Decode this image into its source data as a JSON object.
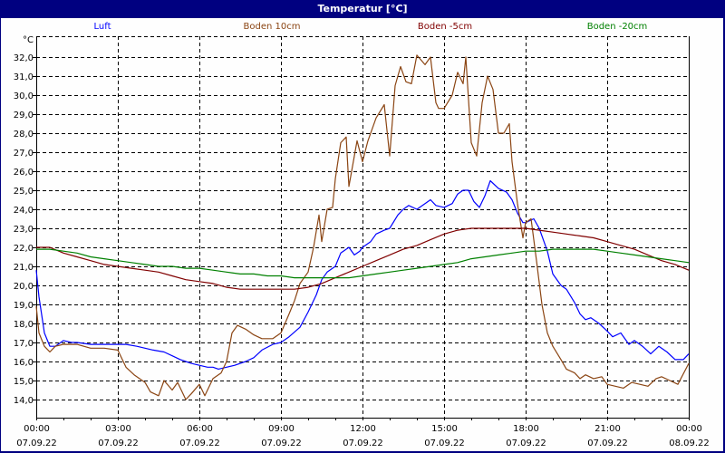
{
  "window": {
    "title": "Temperatur [°C]"
  },
  "chart_data": {
    "type": "line",
    "title": "Temperatur [°C]",
    "ylabel": "°C",
    "xlabel": "",
    "ylim": [
      13.0,
      33.0
    ],
    "yticks": [
      14.0,
      15.0,
      16.0,
      17.0,
      18.0,
      19.0,
      20.0,
      21.0,
      22.0,
      23.0,
      24.0,
      25.0,
      26.0,
      27.0,
      28.0,
      29.0,
      30.0,
      31.0,
      32.0
    ],
    "ytick_labels": [
      "14,0",
      "15,0",
      "16,0",
      "17,0",
      "18,0",
      "19,0",
      "20,0",
      "21,0",
      "22,0",
      "23,0",
      "24,0",
      "25,0",
      "26,0",
      "27,0",
      "28,0",
      "29,0",
      "30,0",
      "31,0",
      "32,0"
    ],
    "xlim_hours": [
      0,
      24
    ],
    "xticks": [
      {
        "hour": 0,
        "time": "00:00",
        "date": "07.09.22"
      },
      {
        "hour": 3,
        "time": "03:00",
        "date": "07.09.22"
      },
      {
        "hour": 6,
        "time": "06:00",
        "date": "07.09.22"
      },
      {
        "hour": 9,
        "time": "09:00",
        "date": "07.09.22"
      },
      {
        "hour": 12,
        "time": "12:00",
        "date": "07.09.22"
      },
      {
        "hour": 15,
        "time": "15:00",
        "date": "07.09.22"
      },
      {
        "hour": 18,
        "time": "18:00",
        "date": "07.09.22"
      },
      {
        "hour": 21,
        "time": "21:00",
        "date": "07.09.22"
      },
      {
        "hour": 24,
        "time": "00:00",
        "date": "08.09.22"
      }
    ],
    "grid": true,
    "legend_position": "top",
    "series": [
      {
        "name": "Luft",
        "color": "#0000ff",
        "x": [
          0,
          0.1,
          0.3,
          0.5,
          0.7,
          1.0,
          1.3,
          1.5,
          2.0,
          2.5,
          3.0,
          3.3,
          3.7,
          4.0,
          4.3,
          4.7,
          5.0,
          5.3,
          5.5,
          5.7,
          6.0,
          6.3,
          6.5,
          6.7,
          7.0,
          7.3,
          7.7,
          8.0,
          8.3,
          8.7,
          9.0,
          9.3,
          9.7,
          10.0,
          10.3,
          10.5,
          10.7,
          11.0,
          11.2,
          11.5,
          11.7,
          11.9,
          12.0,
          12.3,
          12.5,
          12.8,
          13.0,
          13.3,
          13.5,
          13.7,
          14.0,
          14.3,
          14.5,
          14.7,
          15.0,
          15.3,
          15.5,
          15.7,
          15.9,
          16.1,
          16.3,
          16.5,
          16.7,
          17.0,
          17.3,
          17.5,
          17.7,
          17.9,
          18.0,
          18.3,
          18.5,
          18.8,
          19.0,
          19.3,
          19.5,
          19.8,
          20.0,
          20.2,
          20.4,
          20.7,
          21.0,
          21.2,
          21.5,
          21.8,
          22.0,
          22.3,
          22.6,
          22.9,
          23.2,
          23.5,
          23.8,
          24.0
        ],
        "y": [
          20.8,
          19.4,
          17.5,
          16.8,
          16.8,
          17.1,
          17.0,
          17.0,
          16.9,
          16.9,
          16.9,
          16.9,
          16.8,
          16.7,
          16.6,
          16.5,
          16.3,
          16.1,
          16.0,
          15.9,
          15.8,
          15.7,
          15.7,
          15.6,
          15.7,
          15.8,
          16.0,
          16.2,
          16.6,
          16.9,
          17.0,
          17.3,
          17.8,
          18.6,
          19.5,
          20.3,
          20.7,
          21.0,
          21.7,
          22.0,
          21.6,
          21.8,
          22.0,
          22.3,
          22.7,
          22.9,
          23.0,
          23.7,
          24.0,
          24.2,
          24.0,
          24.3,
          24.5,
          24.2,
          24.1,
          24.3,
          24.8,
          25.0,
          25.0,
          24.4,
          24.1,
          24.7,
          25.5,
          25.1,
          24.9,
          24.5,
          23.8,
          23.3,
          23.3,
          23.5,
          23.0,
          21.8,
          20.6,
          20.0,
          19.8,
          19.1,
          18.5,
          18.2,
          18.3,
          18.0,
          17.6,
          17.3,
          17.5,
          16.9,
          17.1,
          16.8,
          16.4,
          16.8,
          16.5,
          16.1,
          16.1,
          16.4
        ]
      },
      {
        "name": "Boden 10cm",
        "color": "#8b4513",
        "x": [
          0,
          0.1,
          0.3,
          0.5,
          0.7,
          1.0,
          1.5,
          2.0,
          2.5,
          3.0,
          3.3,
          3.6,
          4.0,
          4.2,
          4.5,
          4.7,
          5.0,
          5.2,
          5.5,
          5.7,
          6.0,
          6.2,
          6.5,
          6.8,
          7.0,
          7.2,
          7.4,
          7.7,
          8.0,
          8.3,
          8.7,
          9.0,
          9.3,
          9.5,
          9.7,
          10.0,
          10.2,
          10.4,
          10.5,
          10.7,
          10.9,
          11.0,
          11.2,
          11.4,
          11.5,
          11.6,
          11.8,
          12.0,
          12.2,
          12.5,
          12.8,
          13.0,
          13.2,
          13.4,
          13.6,
          13.8,
          14.0,
          14.3,
          14.5,
          14.7,
          14.8,
          15.0,
          15.3,
          15.5,
          15.7,
          15.8,
          16.0,
          16.2,
          16.4,
          16.6,
          16.8,
          17.0,
          17.2,
          17.4,
          17.5,
          17.7,
          17.9,
          18.0,
          18.2,
          18.4,
          18.6,
          18.8,
          19.0,
          19.3,
          19.5,
          19.8,
          20.0,
          20.2,
          20.5,
          20.8,
          21.0,
          21.3,
          21.6,
          21.9,
          22.2,
          22.5,
          22.8,
          23.0,
          23.3,
          23.6,
          24.0
        ],
        "y": [
          18.9,
          17.5,
          16.8,
          16.5,
          16.8,
          16.9,
          16.9,
          16.7,
          16.7,
          16.6,
          15.7,
          15.3,
          14.9,
          14.4,
          14.2,
          15.0,
          14.5,
          14.9,
          14.0,
          14.3,
          14.8,
          14.2,
          15.1,
          15.4,
          16.0,
          17.5,
          17.9,
          17.7,
          17.4,
          17.2,
          17.2,
          17.5,
          18.5,
          19.2,
          20.1,
          20.7,
          22.0,
          23.7,
          22.3,
          24.0,
          24.1,
          25.6,
          27.5,
          27.8,
          25.2,
          26.0,
          27.6,
          26.5,
          27.6,
          28.8,
          29.5,
          26.8,
          30.5,
          31.5,
          30.7,
          30.6,
          32.1,
          31.6,
          32.0,
          29.6,
          29.3,
          29.3,
          30.0,
          31.2,
          30.6,
          32.0,
          27.5,
          26.8,
          29.6,
          31.0,
          30.3,
          28.0,
          28.0,
          28.5,
          26.5,
          24.3,
          22.5,
          23.3,
          23.5,
          21.3,
          19.0,
          17.5,
          16.8,
          16.1,
          15.6,
          15.4,
          15.1,
          15.3,
          15.1,
          15.2,
          14.8,
          14.7,
          14.6,
          14.9,
          14.8,
          14.7,
          15.1,
          15.2,
          15.0,
          14.8,
          15.9
        ]
      },
      {
        "name": "Boden -5cm",
        "color": "#800000",
        "x": [
          0,
          0.5,
          1.0,
          1.5,
          2.0,
          2.5,
          3.0,
          3.5,
          4.0,
          4.5,
          5.0,
          5.5,
          6.0,
          6.5,
          7.0,
          7.5,
          8.0,
          8.5,
          9.0,
          9.5,
          10.0,
          10.5,
          11.0,
          11.5,
          12.0,
          12.5,
          13.0,
          13.5,
          14.0,
          14.5,
          15.0,
          15.5,
          16.0,
          16.5,
          17.0,
          17.5,
          18.0,
          18.5,
          19.0,
          19.5,
          20.0,
          20.5,
          21.0,
          21.5,
          22.0,
          22.5,
          23.0,
          23.5,
          24.0
        ],
        "y": [
          22.0,
          22.0,
          21.7,
          21.5,
          21.3,
          21.1,
          21.0,
          20.9,
          20.8,
          20.7,
          20.5,
          20.3,
          20.2,
          20.1,
          19.9,
          19.8,
          19.8,
          19.8,
          19.8,
          19.8,
          19.9,
          20.1,
          20.4,
          20.7,
          21.0,
          21.3,
          21.6,
          21.9,
          22.1,
          22.4,
          22.7,
          22.9,
          23.0,
          23.0,
          23.0,
          23.0,
          23.0,
          22.9,
          22.8,
          22.7,
          22.6,
          22.5,
          22.3,
          22.1,
          21.9,
          21.6,
          21.3,
          21.1,
          20.8
        ]
      },
      {
        "name": "Boden -20cm",
        "color": "#008000",
        "x": [
          0,
          0.5,
          1.0,
          1.5,
          2.0,
          2.5,
          3.0,
          3.5,
          4.0,
          4.5,
          5.0,
          5.5,
          6.0,
          6.5,
          7.0,
          7.5,
          8.0,
          8.5,
          9.0,
          9.5,
          10.0,
          10.5,
          11.0,
          11.5,
          12.0,
          12.5,
          13.0,
          13.5,
          14.0,
          14.5,
          15.0,
          15.5,
          16.0,
          16.5,
          17.0,
          17.5,
          18.0,
          18.5,
          19.0,
          19.5,
          20.0,
          20.5,
          21.0,
          21.5,
          22.0,
          22.5,
          23.0,
          23.5,
          24.0
        ],
        "y": [
          21.9,
          21.9,
          21.8,
          21.7,
          21.5,
          21.4,
          21.3,
          21.2,
          21.1,
          21.0,
          21.0,
          20.9,
          20.9,
          20.8,
          20.7,
          20.6,
          20.6,
          20.5,
          20.5,
          20.4,
          20.4,
          20.4,
          20.4,
          20.4,
          20.5,
          20.6,
          20.7,
          20.8,
          20.9,
          21.0,
          21.1,
          21.2,
          21.4,
          21.5,
          21.6,
          21.7,
          21.8,
          21.8,
          21.9,
          21.9,
          21.9,
          21.9,
          21.8,
          21.7,
          21.6,
          21.5,
          21.4,
          21.3,
          21.2
        ]
      }
    ]
  }
}
